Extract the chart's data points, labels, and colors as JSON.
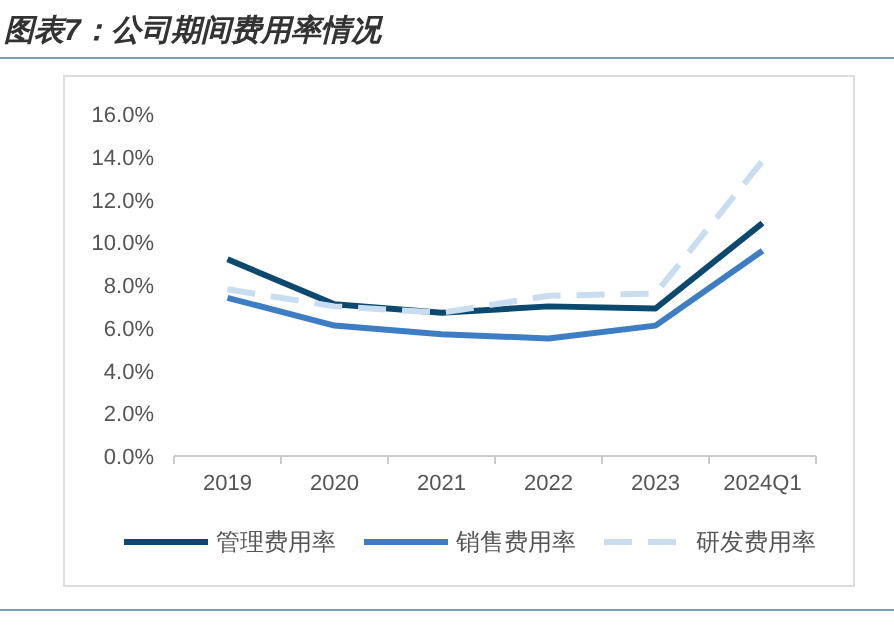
{
  "chart_data": {
    "type": "line",
    "title": "图表7：公司期间费用率情况",
    "categories": [
      "2019",
      "2020",
      "2021",
      "2022",
      "2023",
      "2024Q1"
    ],
    "series": [
      {
        "name": "管理费用率",
        "color": "#0b4a6e",
        "line_style": "solid",
        "values": [
          9.2,
          7.1,
          6.7,
          7.0,
          6.9,
          10.9
        ]
      },
      {
        "name": "销售费用率",
        "color": "#3d7dc4",
        "line_style": "solid",
        "values": [
          7.4,
          6.1,
          5.7,
          5.5,
          6.1,
          9.6
        ]
      },
      {
        "name": "研发费用率",
        "color": "#c9ddf0",
        "line_style": "dashed",
        "values": [
          7.8,
          7.0,
          6.7,
          7.5,
          7.6,
          13.8
        ]
      }
    ],
    "ylim": [
      0,
      16
    ],
    "yticks": [
      {
        "value": 0,
        "label": "0.0%"
      },
      {
        "value": 2,
        "label": "2.0%"
      },
      {
        "value": 4,
        "label": "4.0%"
      },
      {
        "value": 6,
        "label": "6.0%"
      },
      {
        "value": 8,
        "label": "8.0%"
      },
      {
        "value": 10,
        "label": "10.0%"
      },
      {
        "value": 12,
        "label": "12.0%"
      },
      {
        "value": 14,
        "label": "14.0%"
      },
      {
        "value": 16,
        "label": "16.0%"
      }
    ],
    "grid": false,
    "legend": "bottom",
    "marker": "none"
  }
}
